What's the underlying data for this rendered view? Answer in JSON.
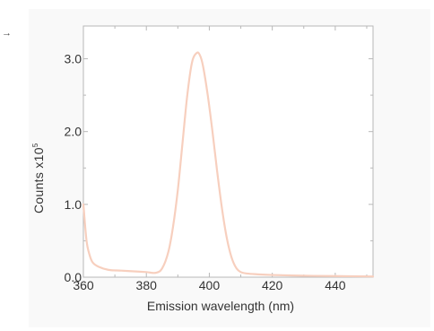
{
  "chart_data": {
    "type": "line",
    "xlabel": "Emission wavelength (nm)",
    "ylabel_base": "Counts x10",
    "ylabel_exponent": "5",
    "xlim": [
      360,
      452
    ],
    "ylim": [
      0,
      3.45
    ],
    "xticks": [
      360,
      380,
      400,
      420,
      440
    ],
    "xtick_labels": [
      "360",
      "380",
      "400",
      "420",
      "440"
    ],
    "yticks": [
      0,
      1,
      2,
      3
    ],
    "ytick_labels": [
      "0.0",
      "1.0",
      "2.0",
      "3.0"
    ],
    "grid": false,
    "line_color": "#f7cfbe",
    "series": [
      {
        "x": [
          360,
          361,
          362,
          363,
          365,
          368,
          372,
          376,
          380,
          383,
          385,
          387,
          388.5,
          390,
          391.5,
          393,
          394.5,
          396,
          397,
          398,
          399.5,
          401,
          402.5,
          404,
          405.5,
          407,
          408.5,
          410,
          412,
          415,
          420,
          430,
          440,
          452
        ],
        "y": [
          1.0,
          0.5,
          0.3,
          0.2,
          0.14,
          0.1,
          0.09,
          0.08,
          0.07,
          0.06,
          0.12,
          0.35,
          0.7,
          1.2,
          1.85,
          2.5,
          2.95,
          3.08,
          3.05,
          2.9,
          2.5,
          2.0,
          1.45,
          0.95,
          0.55,
          0.28,
          0.13,
          0.07,
          0.05,
          0.04,
          0.03,
          0.02,
          0.015,
          0.01
        ]
      }
    ]
  },
  "icons": {
    "arrow": "→"
  }
}
